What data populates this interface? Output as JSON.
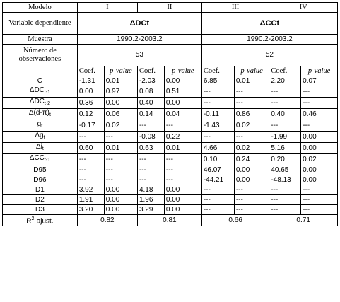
{
  "header": {
    "modelo": "Modelo",
    "models": [
      "I",
      "II",
      "III",
      "IV"
    ],
    "var_dep_label": "Variable dependiente",
    "dep_dc": "ΔDCt",
    "dep_cc": "ΔCCt",
    "muestra_label": "Muestra",
    "muestra_1": "1990.2-2003.2",
    "muestra_2": "1990.2-2003.2",
    "nobs_label": "Número de observaciones",
    "nobs_1": "53",
    "nobs_2": "52",
    "coef": "Coef.",
    "pvalue": "p-value"
  },
  "rows": [
    {
      "label": "C",
      "v": [
        "-1.31",
        "0.01",
        "-2.03",
        "0.00",
        "6.85",
        "0.01",
        "2.20",
        "0.07"
      ]
    },
    {
      "label": "ΔDC",
      "sub": "t-1",
      "v": [
        "0.00",
        "0.97",
        "0.08",
        "0.51",
        "---",
        "---",
        "---",
        "---"
      ]
    },
    {
      "label": "ΔDC",
      "sub": "t-2",
      "v": [
        "0.36",
        "0.00",
        "0.40",
        "0.00",
        "---",
        "---",
        "---",
        "---"
      ]
    },
    {
      "label": "Δ(d-π)",
      "sub": "t",
      "v": [
        "0.12",
        "0.06",
        "0.14",
        "0.04",
        "-0.11",
        "0.86",
        "0.40",
        "0.46"
      ]
    },
    {
      "label": "g",
      "sub": "t",
      "v": [
        "-0.17",
        "0.02",
        "---",
        "---",
        "-1.43",
        "0.02",
        "---",
        "---"
      ]
    },
    {
      "label": "Δg",
      "sub": "t",
      "v": [
        "---",
        "---",
        "-0.08",
        "0.22",
        "---",
        "---",
        "-1.99",
        "0.00"
      ]
    },
    {
      "label": "Δi",
      "sub": "t",
      "v": [
        "0.60",
        "0.01",
        "0.63",
        "0.01",
        "4.66",
        "0.02",
        "5.16",
        "0.00"
      ]
    },
    {
      "label": "ΔCC",
      "sub": "t-1",
      "v": [
        "---",
        "---",
        "---",
        "---",
        "0.10",
        "0.24",
        "0.20",
        "0.02"
      ]
    },
    {
      "label": "D95",
      "v": [
        "---",
        "---",
        "---",
        "---",
        "46.07",
        "0.00",
        "40.65",
        "0.00"
      ]
    },
    {
      "label": "D96",
      "v": [
        "---",
        "---",
        "---",
        "---",
        "-44.21",
        "0.00",
        "-48.13",
        "0.00"
      ]
    },
    {
      "label": "D1",
      "v": [
        "3.92",
        "0.00",
        "4.18",
        "0.00",
        "---",
        "---",
        "---",
        "---"
      ]
    },
    {
      "label": "D2",
      "v": [
        "1.91",
        "0.00",
        "1.96",
        "0.00",
        "---",
        "---",
        "---",
        "---"
      ]
    },
    {
      "label": "D3",
      "v": [
        "3.20",
        "0.00",
        "3.29",
        "0.00",
        "---",
        "---",
        "---",
        "---"
      ]
    }
  ],
  "footer": {
    "r2_label": "R",
    "r2_sup": "2",
    "r2_rest": "-ajust.",
    "r2": [
      "0.82",
      "0.81",
      "0.66",
      "0.71"
    ]
  }
}
